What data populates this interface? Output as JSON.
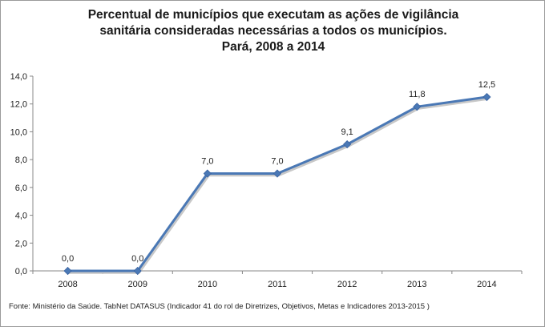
{
  "title": {
    "line1": "Percentual de municípios que executam as ações de vigilância",
    "line2": "sanitária consideradas necessárias a todos os municípios.",
    "line3": "Pará, 2008 a 2014"
  },
  "footer": "Fonte: Ministério da Saúde. TabNet DATASUS (Indicador 41 do rol de Diretrizes, Objetivos, Metas e Indicadores 2013-2015 )",
  "colors": {
    "series": "#4a78b5",
    "marker": "#4a78b5",
    "shadow": "#c8c8c8",
    "axis": "#888888"
  },
  "chart_data": {
    "type": "line",
    "x": [
      "2008",
      "2009",
      "2010",
      "2011",
      "2012",
      "2013",
      "2014"
    ],
    "series": [
      {
        "values": [
          0.0,
          0.0,
          7.0,
          7.0,
          9.1,
          11.8,
          12.5
        ],
        "data_labels": [
          "0,0",
          "0,0",
          "7,0",
          "7,0",
          "9,1",
          "11,8",
          "12,5"
        ]
      }
    ],
    "yticks": [
      "0,0",
      "2,0",
      "4,0",
      "6,0",
      "8,0",
      "10,0",
      "12,0",
      "14,0"
    ],
    "ylim": [
      0,
      14
    ],
    "grid": false,
    "legend": "none"
  }
}
